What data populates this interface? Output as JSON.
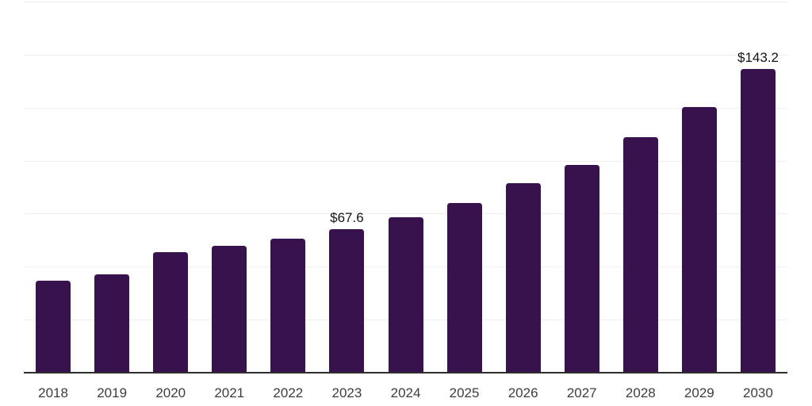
{
  "chart_data": {
    "type": "bar",
    "title": "",
    "xlabel": "",
    "ylabel": "",
    "categories": [
      "2018",
      "2019",
      "2020",
      "2021",
      "2022",
      "2023",
      "2024",
      "2025",
      "2026",
      "2027",
      "2028",
      "2029",
      "2030"
    ],
    "values": [
      43.5,
      46.4,
      56.7,
      59.9,
      63.3,
      67.6,
      73.2,
      80.0,
      89.4,
      98.1,
      110.9,
      125.1,
      143.2
    ],
    "data_labels": [
      {
        "category": "2023",
        "text": "$67.6"
      },
      {
        "category": "2030",
        "text": "$143.2"
      }
    ],
    "ylim": [
      0,
      175
    ],
    "gridline_step": 25,
    "grid": "horizontal-only",
    "y_axis_tick_labels": "none",
    "legend_position": "none",
    "colors": {
      "bar": "#37124d",
      "gridline": "#efefef",
      "axis_line": "#2e2e2e",
      "x_tick_label": "#3d3d3d",
      "data_label": "#141414",
      "background": "#ffffff"
    }
  }
}
